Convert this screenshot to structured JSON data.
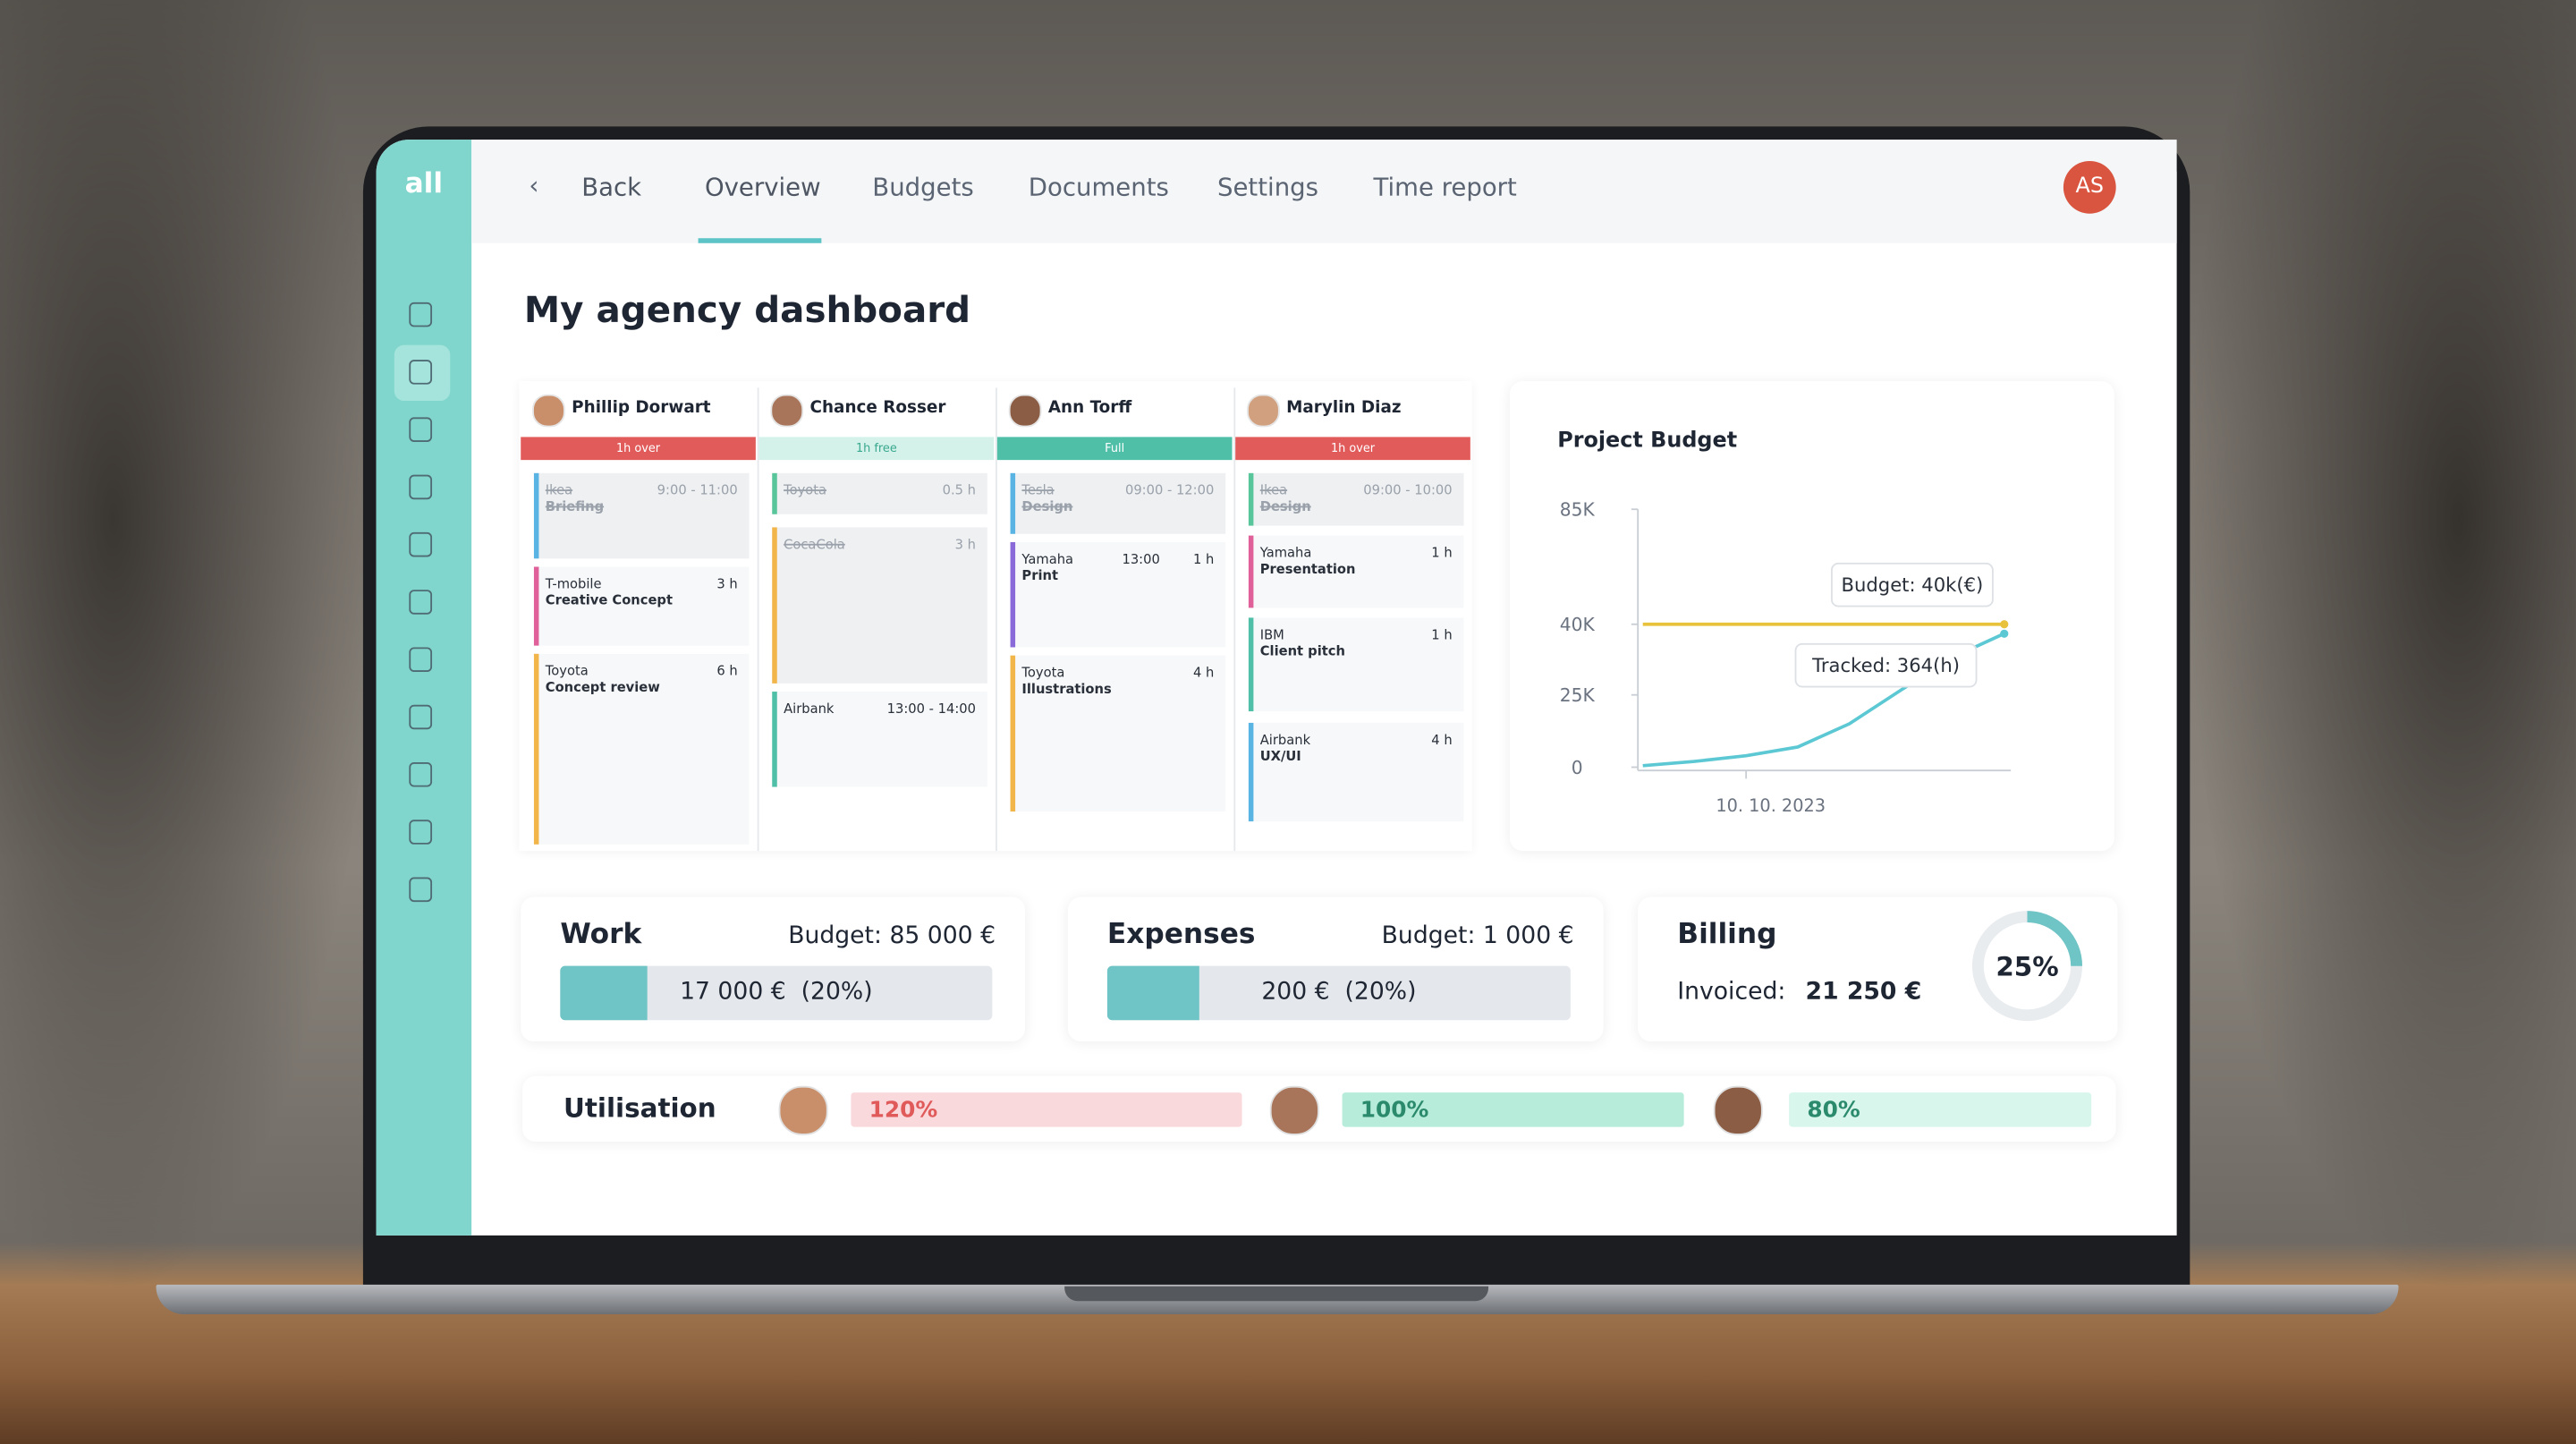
{
  "sidebar": {
    "logo": "all"
  },
  "nav": {
    "back": "Back",
    "tabs": [
      "Overview",
      "Budgets",
      "Documents",
      "Settings",
      "Time report"
    ],
    "active_tab": 0,
    "avatar": "AS"
  },
  "page_title": "My agency dashboard",
  "schedule": {
    "people": [
      {
        "name": "Phillip Dorwart",
        "status": "1h over",
        "status_color": "#e25b5b",
        "tasks": [
          {
            "client": "Ikea",
            "task": "Briefing",
            "time": "9:00 - 11:00",
            "done": true,
            "color": "#5ab4e3"
          },
          {
            "client": "T-mobile",
            "task": "Creative Concept",
            "time": "3 h",
            "done": false,
            "color": "#e0609a"
          },
          {
            "client": "Toyota",
            "task": "Concept review",
            "time": "6 h",
            "done": false,
            "color": "#f2b54a"
          }
        ]
      },
      {
        "name": "Chance Rosser",
        "status": "1h free",
        "status_color": "#d4f2ea",
        "tasks": [
          {
            "client": "Toyota",
            "time": "0.5 h",
            "done": true,
            "color": "#59c59a"
          },
          {
            "client": "CocaCola",
            "time": "3 h",
            "done": true,
            "color": "#f2b54a"
          },
          {
            "client": "Airbank",
            "time": "13:00 - 14:00",
            "done": false,
            "color": "#4fbfa8"
          }
        ]
      },
      {
        "name": "Ann Torff",
        "status": "Full",
        "status_color": "#4fbfa8",
        "tasks": [
          {
            "client": "Tesla",
            "task": "Design",
            "time": "09:00 - 12:00",
            "done": true,
            "color": "#5ab4e3"
          },
          {
            "client": "Yamaha",
            "task": "Print",
            "start": "13:00",
            "time": "1 h",
            "done": false,
            "color": "#8a6ad8"
          },
          {
            "client": "Toyota",
            "task": "Illustrations",
            "time": "4 h",
            "done": false,
            "color": "#f2b54a"
          }
        ]
      },
      {
        "name": "Marylin Diaz",
        "status": "1h over",
        "status_color": "#e25b5b",
        "tasks": [
          {
            "client": "Ikea",
            "task": "Design",
            "time": "09:00 - 10:00",
            "done": true,
            "color": "#59c59a"
          },
          {
            "client": "Yamaha",
            "task": "Presentation",
            "time": "1 h",
            "done": false,
            "color": "#e0609a"
          },
          {
            "client": "IBM",
            "task": "Client pitch",
            "time": "1 h",
            "done": false,
            "color": "#4fbfa8"
          },
          {
            "client": "Airbank",
            "task": "UX/UI",
            "time": "4 h",
            "done": false,
            "color": "#5ab4e3"
          }
        ]
      }
    ]
  },
  "chart_data": {
    "type": "line",
    "title": "Project Budget",
    "categories": [
      null,
      null,
      "10. 10. 2023",
      null,
      null,
      null,
      null,
      null
    ],
    "series": [
      {
        "name": "Budget",
        "color": "#e8c23c",
        "values": [
          40000,
          40000,
          40000,
          40000,
          40000,
          40000,
          40000,
          40000
        ]
      },
      {
        "name": "Tracked",
        "color": "#5cc8d3",
        "values": [
          500,
          2000,
          4000,
          7000,
          15000,
          26000,
          33000,
          38000
        ]
      }
    ],
    "ylim": [
      0,
      85000
    ],
    "yticks": [
      0,
      {
        "value": 25000,
        "label": "25K"
      },
      {
        "value": 40000,
        "label": "40K"
      },
      {
        "value": 85000,
        "label": "85K"
      }
    ],
    "annotations": [
      "Budget: 40k(€)",
      "Tracked: 364(h)"
    ]
  },
  "cards": {
    "work": {
      "title": "Work",
      "budget": "Budget: 85 000 €",
      "progress_label": "17 000 €  (20%)",
      "percent": 20
    },
    "expenses": {
      "title": "Expenses",
      "budget": "Budget: 1 000 €",
      "progress_label": "200 €  (20%)",
      "percent": 20
    },
    "billing": {
      "title": "Billing",
      "invoiced_label": "Invoiced:",
      "invoiced": "21 250 €",
      "percent": 25,
      "percent_label": "25%"
    }
  },
  "utilisation": {
    "title": "Utilisation",
    "values": [
      120,
      100,
      80
    ],
    "value_labels": [
      "120%",
      "100%",
      "80%"
    ],
    "colors": [
      "#f9d9dc",
      "#b6ecd9",
      "#d8f6ec"
    ],
    "text_colors": [
      "#e05a5a",
      "#2b8a6c",
      "#2b8a6c"
    ]
  }
}
